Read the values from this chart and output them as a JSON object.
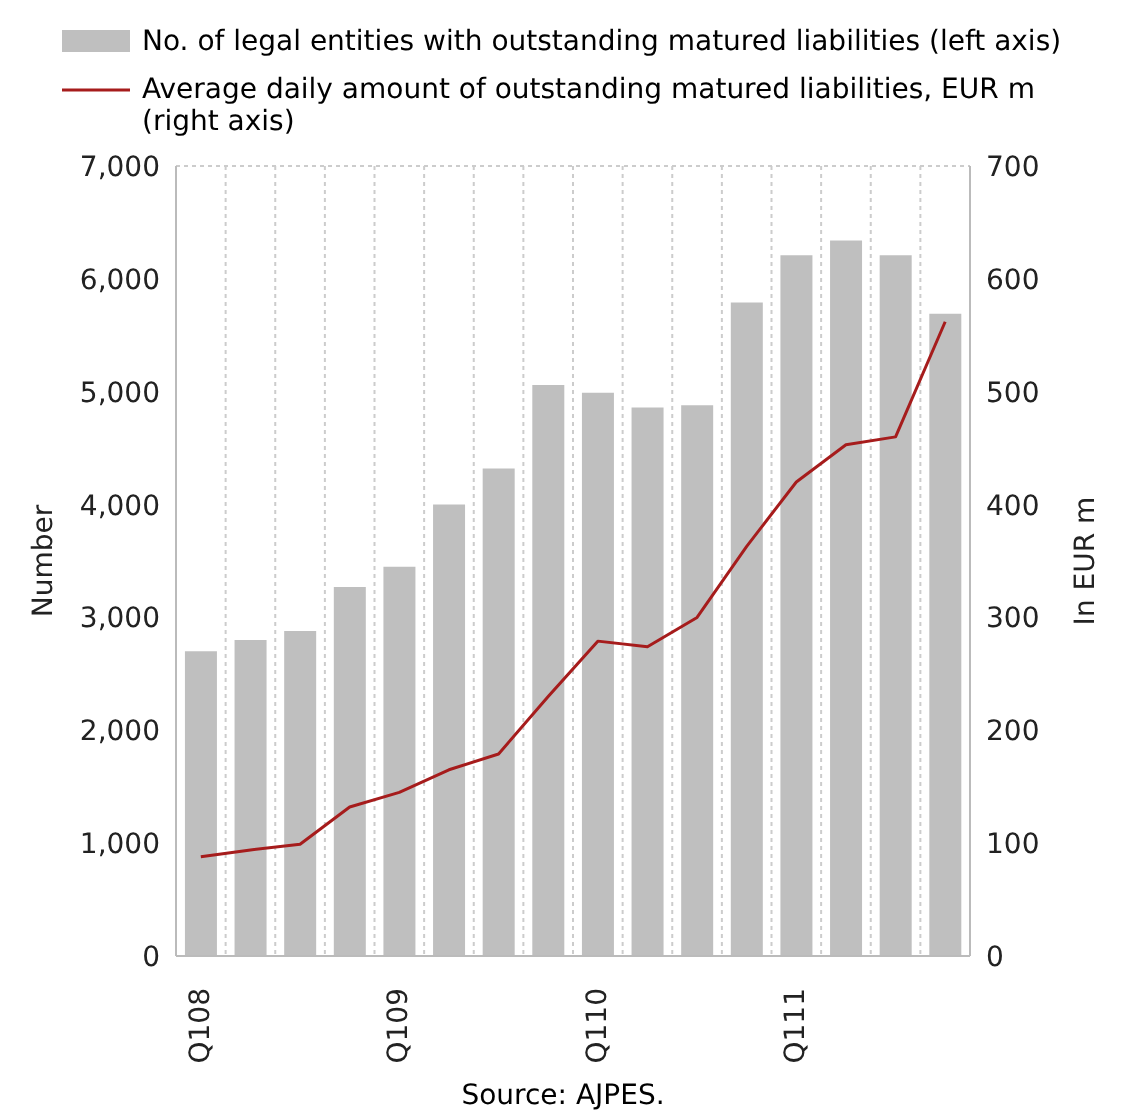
{
  "chart_data": {
    "type": "bar",
    "categories": [
      "Q108",
      null,
      null,
      null,
      "Q109",
      null,
      null,
      null,
      "Q110",
      null,
      null,
      null,
      "Q111",
      null,
      null,
      null
    ],
    "series": [
      {
        "name": "No. of legal entities with outstanding matured liabilities (left axis)",
        "color": "#bfbfbf",
        "values": [
          2700,
          2800,
          2880,
          3270,
          3450,
          4000,
          4320,
          5060,
          4990,
          4860,
          4880,
          5790,
          6210,
          6340,
          6210,
          5690
        ]
      },
      {
        "name": "Average daily amount of outstanding matured liabilities, EUR m (right axis)",
        "type": "line",
        "axis": "y2",
        "color": "#a61c1c",
        "values": [
          88,
          94,
          99,
          132,
          145,
          165,
          179,
          230,
          279,
          274,
          300,
          363,
          420,
          453,
          460,
          562
        ]
      }
    ],
    "ylabel": "Number",
    "y2label": "In EUR m",
    "ylim": [
      0,
      7000
    ],
    "yticks": [
      {
        "value": 0,
        "label": "0"
      },
      {
        "value": 1000,
        "label": "1,000"
      },
      {
        "value": 2000,
        "label": "2,000"
      },
      {
        "value": 3000,
        "label": "3,000"
      },
      {
        "value": 4000,
        "label": "4,000"
      },
      {
        "value": 5000,
        "label": "5,000"
      },
      {
        "value": 6000,
        "label": "6,000"
      },
      {
        "value": 7000,
        "label": "7,000"
      }
    ],
    "y2lim": [
      0,
      700
    ],
    "y2ticks": [
      0,
      100,
      200,
      300,
      400,
      500,
      600,
      700
    ],
    "grid": true,
    "legend": "top",
    "marker": "none",
    "line_style": "solid",
    "annotations": [
      "Source: AJPES."
    ]
  }
}
